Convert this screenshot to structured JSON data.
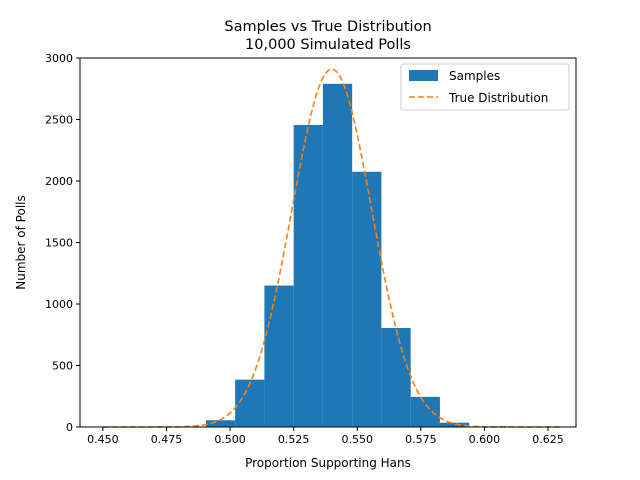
{
  "chart_data": {
    "type": "bar",
    "title_line1": "Samples vs True Distribution",
    "title_line2": "10,000 Simulated Polls",
    "xlabel": "Proportion Supporting Hans",
    "ylabel": "Number of Polls",
    "xlim": [
      0.441,
      0.636
    ],
    "ylim": [
      0,
      3000
    ],
    "grid": false,
    "legend_position": "top-right",
    "x_ticks": [
      {
        "value": 0.45,
        "label": "0.450"
      },
      {
        "value": 0.475,
        "label": "0.475"
      },
      {
        "value": 0.5,
        "label": "0.500"
      },
      {
        "value": 0.525,
        "label": "0.525"
      },
      {
        "value": 0.55,
        "label": "0.550"
      },
      {
        "value": 0.575,
        "label": "0.575"
      },
      {
        "value": 0.6,
        "label": "0.600"
      },
      {
        "value": 0.625,
        "label": "0.625"
      }
    ],
    "y_ticks": [
      {
        "value": 0,
        "label": "0"
      },
      {
        "value": 500,
        "label": "500"
      },
      {
        "value": 1000,
        "label": "1000"
      },
      {
        "value": 1500,
        "label": "1500"
      },
      {
        "value": 2000,
        "label": "2000"
      },
      {
        "value": 2500,
        "label": "2500"
      },
      {
        "value": 3000,
        "label": "3000"
      }
    ],
    "histogram": {
      "name": "Samples",
      "color": "#1f77b4",
      "bin_edges": [
        0.4905,
        0.502,
        0.5135,
        0.525,
        0.5365,
        0.548,
        0.5595,
        0.571,
        0.5825,
        0.594
      ],
      "counts": [
        55,
        385,
        1150,
        2455,
        2790,
        2075,
        805,
        245,
        35
      ]
    },
    "true_distribution": {
      "name": "True Distribution",
      "color": "#ff7f0e",
      "line_style": "dashed",
      "x_start": 0.45,
      "x_end": 0.63,
      "peak_x": 0.54,
      "peak_y": 2910,
      "std": 0.0157
    }
  }
}
